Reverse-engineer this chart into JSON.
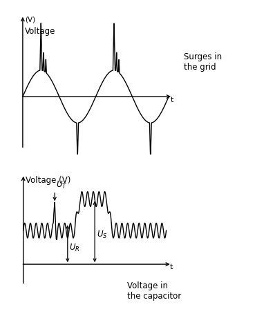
{
  "bg_color": "#ffffff",
  "line_color": "#000000",
  "text_color": "#000000",
  "top_v_label": "(V)",
  "top_label": "Voltage",
  "top_annotation": "Surges in\nthe grid",
  "top_t_label": "t",
  "bottom_label": "Voltage (V)",
  "bottom_annotation": "Voltage in\nthe capacitor",
  "bottom_t_label": "t"
}
